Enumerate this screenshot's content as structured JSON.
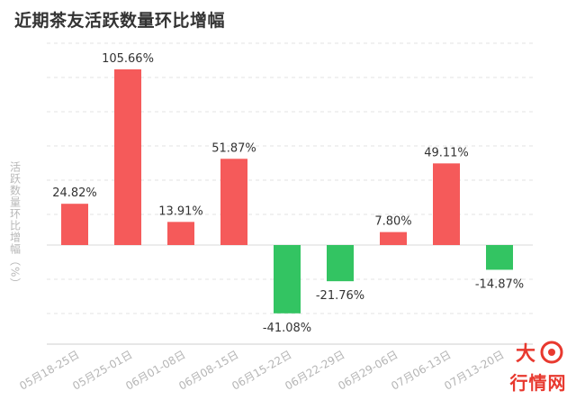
{
  "chart_data": {
    "type": "bar",
    "title": "近期茶友活跃数量环比增幅",
    "ylabel": "活跃数量环比增幅（%）",
    "xlabel": "",
    "categories": [
      "05月18-25日",
      "05月25-01日",
      "06月01-08日",
      "06月08-15日",
      "06月15-22日",
      "06月22-29日",
      "06月29-06日",
      "07月06-13日",
      "07月13-20日"
    ],
    "values": [
      24.82,
      105.66,
      13.91,
      51.87,
      -41.08,
      -21.76,
      7.8,
      49.11,
      -14.87
    ],
    "data_labels": [
      "24.82%",
      "105.66%",
      "13.91%",
      "51.87%",
      "-41.08%",
      "-21.76%",
      "7.80%",
      "49.11%",
      "-14.87%"
    ],
    "ylim": [
      -80,
      140
    ],
    "grid": true,
    "colors": {
      "positive": "#f55a5a",
      "negative": "#33c462"
    }
  },
  "watermark": {
    "text": "行情网",
    "glyph": "大"
  }
}
